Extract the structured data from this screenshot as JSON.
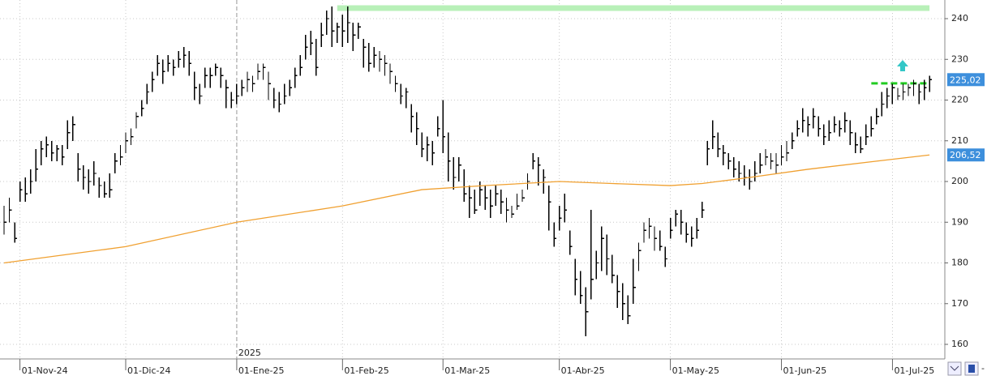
{
  "chart_data": {
    "type": "ohlc",
    "color": "#000000",
    "x": [
      0,
      1,
      2,
      3,
      4,
      5,
      6,
      7,
      8,
      9,
      10,
      11,
      12,
      13,
      14,
      15,
      16,
      17,
      18,
      19,
      20,
      21,
      22,
      23,
      24,
      25,
      26,
      27,
      28,
      29,
      30,
      31,
      32,
      33,
      34,
      35,
      36,
      37,
      38,
      39,
      40,
      41,
      42,
      43,
      44,
      45,
      46,
      47,
      48,
      49,
      50,
      51,
      52,
      53,
      54,
      55,
      56,
      57,
      58,
      59,
      60,
      61,
      62,
      63,
      64,
      65,
      66,
      67,
      68,
      69,
      70,
      71,
      72,
      73,
      74,
      75,
      76,
      77,
      78,
      79,
      80,
      81,
      82,
      83,
      84,
      85,
      86,
      87,
      88,
      89,
      90,
      91,
      92,
      93,
      94,
      95,
      96,
      97,
      98,
      99,
      100,
      101,
      102,
      103,
      104,
      105,
      106,
      107,
      108,
      109,
      110,
      111,
      112,
      113,
      114,
      115,
      116,
      117,
      118,
      119,
      120,
      121,
      122,
      123,
      124,
      125,
      126,
      127,
      128,
      129,
      130,
      131,
      132,
      133,
      134,
      135,
      136,
      137,
      138,
      139,
      140,
      141,
      142,
      143,
      144,
      145,
      146,
      147,
      148,
      149,
      150,
      151,
      152,
      153,
      154,
      155,
      156,
      157,
      158,
      159,
      160,
      161,
      162,
      163,
      164,
      165,
      166,
      167,
      168,
      169,
      170,
      171,
      172,
      173,
      174,
      175
    ],
    "high": [
      194,
      196,
      190,
      200,
      201,
      203,
      208,
      210,
      211,
      210,
      209,
      209,
      215,
      216,
      207,
      204,
      203,
      205,
      201,
      200,
      202,
      207,
      209,
      212,
      213,
      217,
      220,
      224,
      227,
      231,
      230,
      231,
      230,
      232,
      233,
      232,
      227,
      224,
      228,
      228,
      229,
      228,
      225,
      222,
      224,
      225,
      227,
      226,
      229,
      229,
      227,
      223,
      222,
      224,
      225,
      228,
      231,
      236,
      237,
      235,
      239,
      242,
      243,
      239,
      241,
      243,
      239,
      239,
      235,
      234,
      233,
      232,
      231,
      229,
      226,
      224,
      223,
      219,
      217,
      212,
      211,
      210,
      216,
      220,
      212,
      206,
      206,
      203,
      199,
      198,
      200,
      199,
      198,
      199,
      198,
      196,
      194,
      197,
      198,
      202,
      207,
      206,
      203,
      199,
      190,
      194,
      197,
      188,
      181,
      178,
      174,
      193,
      183,
      189,
      187,
      182,
      177,
      175,
      172,
      181,
      185,
      190,
      191,
      189,
      188,
      184,
      191,
      193,
      193,
      190,
      189,
      191,
      195,
      210,
      215,
      212,
      209,
      207,
      206,
      205,
      204,
      203,
      205,
      207,
      208,
      207,
      207,
      209,
      210,
      212,
      215,
      218,
      216,
      218,
      216,
      214,
      215,
      216,
      215,
      217,
      215,
      212,
      211,
      214,
      216,
      218,
      222,
      223,
      224,
      223,
      224,
      224,
      225,
      224,
      225,
      226
    ],
    "low": [
      187,
      190,
      185,
      195,
      195,
      197,
      200,
      204,
      206,
      205,
      205,
      204,
      208,
      210,
      200,
      198,
      197,
      199,
      196,
      196,
      196,
      202,
      204,
      207,
      209,
      213,
      216,
      219,
      222,
      226,
      224,
      227,
      226,
      228,
      228,
      226,
      220,
      219,
      223,
      223,
      226,
      223,
      218,
      218,
      219,
      221,
      222,
      222,
      225,
      225,
      220,
      218,
      217,
      219,
      221,
      223,
      226,
      230,
      231,
      226,
      233,
      236,
      233,
      234,
      233,
      234,
      232,
      235,
      228,
      227,
      228,
      227,
      226,
      224,
      222,
      219,
      218,
      212,
      209,
      206,
      205,
      204,
      211,
      207,
      200,
      198,
      200,
      195,
      191,
      192,
      194,
      193,
      191,
      194,
      192,
      190,
      191,
      193,
      195,
      198,
      203,
      199,
      197,
      188,
      184,
      188,
      190,
      182,
      172,
      170,
      162,
      171,
      176,
      178,
      177,
      175,
      169,
      166,
      165,
      170,
      178,
      185,
      186,
      183,
      183,
      179,
      186,
      189,
      187,
      185,
      184,
      186,
      191,
      204,
      208,
      206,
      204,
      203,
      201,
      200,
      199,
      198,
      200,
      202,
      204,
      203,
      202,
      204,
      205,
      208,
      211,
      212,
      211,
      213,
      211,
      209,
      210,
      212,
      211,
      212,
      209,
      207,
      207,
      209,
      211,
      214,
      216,
      218,
      219,
      220,
      220,
      221,
      221,
      219,
      220,
      222
    ],
    "close": [
      190,
      193,
      186,
      198,
      197,
      200,
      203,
      208,
      209,
      207,
      208,
      206,
      212,
      214,
      203,
      201,
      200,
      202,
      199,
      197,
      198,
      205,
      206,
      210,
      211,
      216,
      218,
      222,
      225,
      229,
      227,
      229,
      228,
      230,
      231,
      229,
      223,
      221,
      226,
      226,
      228,
      226,
      223,
      220,
      221,
      223,
      225,
      224,
      227,
      228,
      224,
      220,
      219,
      221,
      223,
      226,
      228,
      233,
      234,
      228,
      236,
      240,
      237,
      238,
      237,
      239,
      236,
      238,
      233,
      229,
      231,
      230,
      229,
      227,
      224,
      221,
      222,
      216,
      213,
      208,
      209,
      207,
      213,
      211,
      205,
      201,
      204,
      197,
      196,
      193,
      198,
      196,
      194,
      197,
      195,
      193,
      192,
      194,
      196,
      200,
      205,
      204,
      201,
      195,
      186,
      191,
      193,
      184,
      176,
      172,
      168,
      176,
      180,
      186,
      181,
      177,
      173,
      170,
      167,
      174,
      183,
      188,
      189,
      186,
      184,
      181,
      188,
      192,
      190,
      187,
      186,
      188,
      193,
      208,
      211,
      208,
      207,
      205,
      203,
      202,
      201,
      200,
      202,
      204,
      206,
      205,
      204,
      206,
      207,
      210,
      213,
      215,
      214,
      216,
      213,
      211,
      212,
      214,
      213,
      215,
      212,
      209,
      208,
      211,
      213,
      216,
      219,
      221,
      223,
      221,
      222,
      223,
      224,
      222,
      223,
      225.02
    ],
    "ma": {
      "color": "#f0a030",
      "x": [
        0,
        23,
        44,
        64,
        79,
        91,
        105,
        115,
        126,
        132,
        141,
        152,
        165,
        175
      ],
      "values": [
        180,
        184,
        190,
        194,
        198,
        199,
        200,
        199.5,
        199,
        199.5,
        201,
        203,
        205,
        206.52
      ]
    },
    "price_markers": [
      {
        "value": 225.02,
        "label": "225,02"
      },
      {
        "value": 206.52,
        "label": "206,52"
      }
    ],
    "marker_color": "#3d8fdc",
    "hlines": [
      {
        "value": 242.6,
        "from": 63,
        "to": 175,
        "color": "#b8f0b8",
        "dashed": false
      },
      {
        "value": 224.1,
        "from": 164,
        "to": 175,
        "color": "#22cc22",
        "dashed": true
      }
    ],
    "year_marker": {
      "x": 44,
      "label": "2025"
    },
    "xlim": [
      -0.77,
      177.9
    ],
    "ylim": [
      156.42,
      244.58
    ],
    "xticks": [
      {
        "value": 3,
        "label": "01-Nov-24"
      },
      {
        "value": 23,
        "label": "01-Dic-24"
      },
      {
        "value": 44,
        "label": "01-Ene-25"
      },
      {
        "value": 64,
        "label": "01-Feb-25"
      },
      {
        "value": 83,
        "label": "01-Mar-25"
      },
      {
        "value": 105,
        "label": "01-Abr-25"
      },
      {
        "value": 126,
        "label": "01-May-25"
      },
      {
        "value": 147,
        "label": "01-Jun-25"
      },
      {
        "value": 168,
        "label": "01-Jul-25"
      }
    ],
    "yticks": [
      160,
      170,
      180,
      190,
      200,
      210,
      220,
      230,
      240
    ],
    "grid": true
  }
}
